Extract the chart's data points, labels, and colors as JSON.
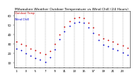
{
  "title": "Milwaukee Weather Outdoor Temperature vs Wind Chill (24 Hours)",
  "title_fontsize": 3.2,
  "bg_color": "#ffffff",
  "plot_bg": "#ffffff",
  "grid_color": "#888888",
  "tick_fontsize": 2.8,
  "hours": [
    0,
    1,
    2,
    3,
    4,
    5,
    6,
    7,
    8,
    9,
    10,
    11,
    12,
    13,
    14,
    15,
    16,
    17,
    18,
    19,
    20,
    21,
    22,
    23
  ],
  "temp": [
    32,
    30,
    28,
    25,
    23,
    21,
    19,
    22,
    30,
    40,
    48,
    54,
    57,
    58,
    57,
    52,
    47,
    40,
    36,
    34,
    32,
    30,
    28,
    26
  ],
  "wind_chill": [
    25,
    23,
    20,
    17,
    15,
    13,
    11,
    16,
    24,
    35,
    43,
    49,
    52,
    53,
    52,
    47,
    41,
    34,
    29,
    27,
    25,
    23,
    21,
    18
  ],
  "temp_color": "#cc0000",
  "wind_chill_color": "#0000cc",
  "marker_size": 1.2,
  "ylim": [
    5,
    65
  ],
  "xlim": [
    -0.5,
    23.5
  ],
  "yticks": [
    10,
    20,
    30,
    40,
    50,
    60
  ],
  "vgrid_positions": [
    0,
    2,
    4,
    6,
    8,
    10,
    12,
    14,
    16,
    18,
    20,
    22
  ],
  "legend_temp": "Outdoor Temp",
  "legend_wc": "Wind Chill"
}
